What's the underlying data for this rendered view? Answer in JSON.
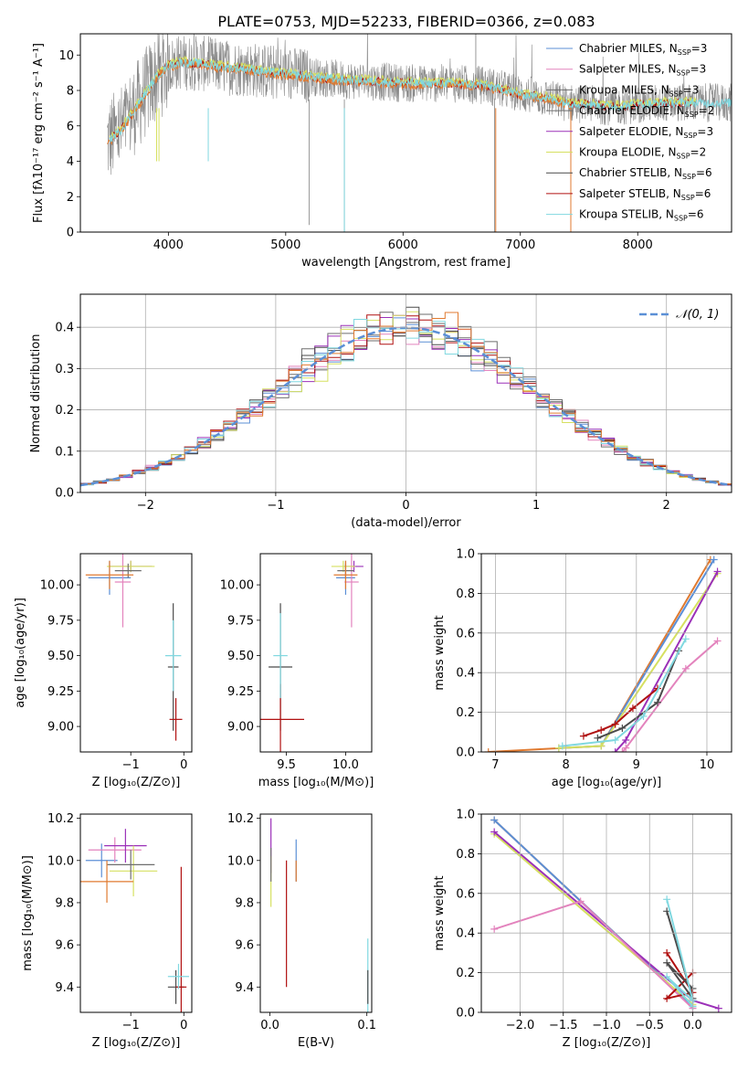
{
  "figure_title": "PLATE=0753, MJD=52233, FIBERID=0366, z=0.083",
  "colors": {
    "Chabrier MILES": "#5b8fd6",
    "Salpeter MILES": "#e383bd",
    "Kroupa MILES": "#6e6e6e",
    "Chabrier ELODIE": "#6e6e6e",
    "Salpeter ELODIE": "#9b30b8",
    "Kroupa ELODIE": "#d6e060",
    "Chabrier STELIB": "#4a4a4a",
    "Salpeter STELIB": "#b01010",
    "Kroupa STELIB": "#80d8e0",
    "extra": "#e07a30",
    "normal": "#5b8fd6"
  },
  "chart_data": [
    {
      "id": "spectrum",
      "type": "line",
      "xlabel": "wavelength [Angstrom, rest frame]",
      "ylabel": "Flux [fλ10⁻¹⁷ erg cm⁻² s⁻¹ A⁻¹]",
      "xlim": [
        3250,
        8800
      ],
      "ylim": [
        0,
        11.2
      ],
      "xticks": [
        4000,
        5000,
        6000,
        7000,
        8000
      ],
      "yticks": [
        0,
        2,
        4,
        6,
        8,
        10
      ],
      "legend_position": "top-right",
      "legend": [
        {
          "name": "Chabrier MILES",
          "sub": "SSP",
          "n": "3"
        },
        {
          "name": "Salpeter MILES",
          "sub": "SSP",
          "n": "3"
        },
        {
          "name": "Kroupa MILES",
          "sub": "SSP",
          "n": "3"
        },
        {
          "name": "Chabrier ELODIE",
          "sub": "SSP",
          "n": "2"
        },
        {
          "name": "Salpeter ELODIE",
          "sub": "SSP",
          "n": "3"
        },
        {
          "name": "Kroupa ELODIE",
          "sub": "SSP",
          "n": "2"
        },
        {
          "name": "Chabrier STELIB",
          "sub": "SSP",
          "n": "6"
        },
        {
          "name": "Salpeter STELIB",
          "sub": "SSP",
          "n": "6"
        },
        {
          "name": "Kroupa STELIB",
          "sub": "SSP",
          "n": "6"
        }
      ],
      "data_envelope": {
        "x": [
          3500,
          3600,
          3700,
          3800,
          3900,
          4000,
          4100,
          4300,
          4500,
          4700,
          4900,
          5200,
          5500,
          5800,
          6100,
          6400,
          6700,
          7000,
          7200,
          7400,
          7600,
          7800,
          8000,
          8200,
          8400,
          8600,
          8800
        ],
        "y": [
          5.2,
          5.8,
          6.8,
          7.8,
          8.8,
          9.4,
          9.6,
          9.5,
          9.3,
          9.2,
          9.0,
          8.8,
          8.6,
          8.5,
          8.4,
          8.4,
          8.3,
          7.8,
          7.6,
          7.3,
          7.2,
          7.1,
          7.2,
          7.3,
          7.3,
          7.3,
          7.3
        ]
      }
    },
    {
      "id": "residuals",
      "type": "line",
      "xlabel": "(data-model)/error",
      "ylabel": "Normed distribution",
      "xlim": [
        -2.5,
        2.5
      ],
      "ylim": [
        0,
        0.48
      ],
      "xticks": [
        -2,
        -1,
        0,
        1,
        2
      ],
      "yticks": [
        0.0,
        0.1,
        0.2,
        0.3,
        0.4
      ],
      "xtick_labels": [
        "−2",
        "−1",
        "0",
        "1",
        "2"
      ],
      "ytick_labels": [
        "0.0",
        "0.1",
        "0.2",
        "0.3",
        "0.4"
      ],
      "legend": [
        {
          "name": "𝒩(0, 1)"
        }
      ],
      "legend_position": "top-right",
      "grid": true
    },
    {
      "id": "age_vs_Z",
      "type": "scatter",
      "xlabel": "Z [log₁₀(Z/Z⊙)]",
      "ylabel": "age  [log₁₀(age/yr)]",
      "xlim": [
        -1.95,
        0.15
      ],
      "ylim": [
        8.82,
        10.22
      ],
      "xticks": [
        -1,
        0
      ],
      "yticks": [
        9.0,
        9.25,
        9.5,
        9.75,
        10.0
      ],
      "xtick_labels": [
        "−1",
        "0"
      ],
      "ytick_labels": [
        "9.00",
        "9.25",
        "9.50",
        "9.75",
        "10.00"
      ],
      "points": [
        {
          "color": "#5b8fd6",
          "x": -1.4,
          "xerr": 0.4,
          "y": 10.05,
          "yerr": 0.12
        },
        {
          "color": "#e383bd",
          "x": -1.15,
          "xerr": 0.15,
          "y": 10.02,
          "yerr": 0.32
        },
        {
          "color": "#9b30b8",
          "x": -1.0,
          "xerr": 0.4,
          "y": 10.13,
          "yerr": 0.04
        },
        {
          "color": "#d6e060",
          "x": -1.0,
          "xerr": 0.45,
          "y": 10.13,
          "yerr": 0.04
        },
        {
          "color": "#6e6e6e",
          "x": -1.05,
          "xerr": 0.25,
          "y": 10.1,
          "yerr": 0.05
        },
        {
          "color": "#e07a30",
          "x": -1.4,
          "xerr": 0.45,
          "y": 10.07,
          "yerr": 0.1
        },
        {
          "color": "#4a4a4a",
          "x": -0.2,
          "xerr": 0.1,
          "y": 9.42,
          "yerr": 0.45
        },
        {
          "color": "#b01010",
          "x": -0.15,
          "xerr": 0.12,
          "y": 9.05,
          "yerr": 0.15
        },
        {
          "color": "#80d8e0",
          "x": -0.2,
          "xerr": 0.15,
          "y": 9.5,
          "yerr": 0.25
        }
      ]
    },
    {
      "id": "age_vs_mass",
      "type": "scatter",
      "xlabel": "mass [log₁₀(M/M⊙)]",
      "ylabel": "",
      "xlim": [
        9.28,
        10.22
      ],
      "ylim": [
        8.82,
        10.22
      ],
      "xticks": [
        9.5,
        10.0
      ],
      "yticks": [
        9.0,
        9.25,
        9.5,
        9.75,
        10.0
      ],
      "xtick_labels": [
        "9.5",
        "10.0"
      ],
      "ytick_labels": [
        "9.00",
        "9.25",
        "9.50",
        "9.75",
        "10.00"
      ],
      "points": [
        {
          "color": "#5b8fd6",
          "x": 10.0,
          "xerr": 0.08,
          "y": 10.05,
          "yerr": 0.12
        },
        {
          "color": "#e383bd",
          "x": 10.05,
          "xerr": 0.06,
          "y": 10.02,
          "yerr": 0.32
        },
        {
          "color": "#9b30b8",
          "x": 10.07,
          "xerr": 0.08,
          "y": 10.13,
          "yerr": 0.04
        },
        {
          "color": "#d6e060",
          "x": 9.98,
          "xerr": 0.1,
          "y": 10.13,
          "yerr": 0.04
        },
        {
          "color": "#6e6e6e",
          "x": 10.0,
          "xerr": 0.07,
          "y": 10.1,
          "yerr": 0.05
        },
        {
          "color": "#e07a30",
          "x": 10.0,
          "xerr": 0.1,
          "y": 10.07,
          "yerr": 0.1
        },
        {
          "color": "#4a4a4a",
          "x": 9.45,
          "xerr": 0.1,
          "y": 9.42,
          "yerr": 0.45
        },
        {
          "color": "#b01010",
          "x": 9.45,
          "xerr": 0.2,
          "y": 9.05,
          "yerr": 0.25
        },
        {
          "color": "#80d8e0",
          "x": 9.45,
          "xerr": 0.06,
          "y": 9.5,
          "yerr": 0.3
        }
      ]
    },
    {
      "id": "weight_vs_age",
      "type": "line",
      "xlabel": "age  [log₁₀(age/yr)]",
      "ylabel": "mass weight",
      "xlim": [
        6.8,
        10.35
      ],
      "ylim": [
        0,
        1.0
      ],
      "xticks": [
        7,
        8,
        9,
        10
      ],
      "yticks": [
        0.0,
        0.2,
        0.4,
        0.6,
        0.8,
        1.0
      ],
      "xtick_labels": [
        "7",
        "8",
        "9",
        "10"
      ],
      "ytick_labels": [
        "0.0",
        "0.2",
        "0.4",
        "0.6",
        "0.8",
        "1.0"
      ],
      "grid": true,
      "series": [
        {
          "color": "#e07a30",
          "x": [
            6.9,
            8.5,
            10.05
          ],
          "y": [
            0.0,
            0.03,
            0.97
          ]
        },
        {
          "color": "#5b8fd6",
          "x": [
            7.9,
            8.5,
            10.1
          ],
          "y": [
            0.02,
            0.03,
            0.97
          ]
        },
        {
          "color": "#d6e060",
          "x": [
            7.9,
            8.5,
            10.15
          ],
          "y": [
            0.02,
            0.03,
            0.9
          ]
        },
        {
          "color": "#9b30b8",
          "x": [
            8.7,
            8.85,
            10.15
          ],
          "y": [
            0.0,
            0.06,
            0.91
          ]
        },
        {
          "color": "#e383bd",
          "x": [
            8.8,
            8.85,
            9.7,
            10.15
          ],
          "y": [
            0.0,
            0.02,
            0.42,
            0.56
          ]
        },
        {
          "color": "#b01010",
          "x": [
            8.25,
            8.5,
            8.7,
            8.95,
            9.3
          ],
          "y": [
            0.08,
            0.11,
            0.14,
            0.22,
            0.32
          ]
        },
        {
          "color": "#4a4a4a",
          "x": [
            8.45,
            8.8,
            9.3,
            9.6
          ],
          "y": [
            0.07,
            0.12,
            0.25,
            0.51
          ]
        },
        {
          "color": "#80d8e0",
          "x": [
            7.95,
            8.7,
            9.1,
            9.7
          ],
          "y": [
            0.03,
            0.06,
            0.18,
            0.57
          ]
        }
      ]
    },
    {
      "id": "mass_vs_Z",
      "type": "scatter",
      "xlabel": "Z [log₁₀(Z/Z⊙)]",
      "ylabel": "mass [log₁₀(M/M⊙)]",
      "xlim": [
        -1.95,
        0.15
      ],
      "ylim": [
        9.28,
        10.22
      ],
      "xticks": [
        -1,
        0
      ],
      "yticks": [
        9.4,
        9.6,
        9.8,
        10.0,
        10.2
      ],
      "xtick_labels": [
        "−1",
        "0"
      ],
      "ytick_labels": [
        "9.4",
        "9.6",
        "9.8",
        "10.0",
        "10.2"
      ],
      "points": [
        {
          "color": "#5b8fd6",
          "x": -1.55,
          "xerr": 0.3,
          "y": 10.0,
          "yerr": 0.08
        },
        {
          "color": "#e383bd",
          "x": -1.3,
          "xerr": 0.5,
          "y": 10.05,
          "yerr": 0.06
        },
        {
          "color": "#9b30b8",
          "x": -1.1,
          "xerr": 0.4,
          "y": 10.07,
          "yerr": 0.08
        },
        {
          "color": "#d6e060",
          "x": -0.95,
          "xerr": 0.45,
          "y": 9.95,
          "yerr": 0.12
        },
        {
          "color": "#6e6e6e",
          "x": -1.0,
          "xerr": 0.45,
          "y": 9.98,
          "yerr": 0.07
        },
        {
          "color": "#e07a30",
          "x": -1.45,
          "xerr": 0.5,
          "y": 9.9,
          "yerr": 0.1
        },
        {
          "color": "#4a4a4a",
          "x": -0.15,
          "xerr": 0.15,
          "y": 9.4,
          "yerr": 0.08
        },
        {
          "color": "#b01010",
          "x": -0.05,
          "xerr": 0.1,
          "y": 9.4,
          "yerr": 0.57
        },
        {
          "color": "#80d8e0",
          "x": -0.1,
          "xerr": 0.2,
          "y": 9.45,
          "yerr": 0.06
        }
      ]
    },
    {
      "id": "mass_vs_ebv",
      "type": "scatter",
      "xlabel": "E(B-V)",
      "ylabel": "",
      "xlim": [
        -0.01,
        0.105
      ],
      "ylim": [
        9.28,
        10.22
      ],
      "xticks": [
        0.0,
        0.1
      ],
      "yticks": [
        9.4,
        9.6,
        9.8,
        10.0,
        10.2
      ],
      "xtick_labels": [
        "0.0",
        "0.1"
      ],
      "ytick_labels": [
        "9.4",
        "9.6",
        "9.8",
        "10.0",
        "10.2"
      ],
      "points": [
        {
          "color": "#9b30b8",
          "x": 0.001,
          "xerr": 0,
          "y": 10.07,
          "yerr": 0.13
        },
        {
          "color": "#d6e060",
          "x": 0.001,
          "xerr": 0,
          "y": 9.9,
          "yerr": 0.12
        },
        {
          "color": "#6e6e6e",
          "x": 0.001,
          "xerr": 0,
          "y": 9.98,
          "yerr": 0.08
        },
        {
          "color": "#b01010",
          "x": 0.017,
          "xerr": 0,
          "y": 9.7,
          "yerr": 0.3
        },
        {
          "color": "#5b8fd6",
          "x": 0.027,
          "xerr": 0,
          "y": 10.0,
          "yerr": 0.1
        },
        {
          "color": "#e07a30",
          "x": 0.027,
          "xerr": 0,
          "y": 9.95,
          "yerr": 0.05
        },
        {
          "color": "#80d8e0",
          "x": 0.101,
          "xerr": 0,
          "y": 9.45,
          "yerr": 0.18
        },
        {
          "color": "#4a4a4a",
          "x": 0.101,
          "xerr": 0,
          "y": 9.4,
          "yerr": 0.08
        }
      ]
    },
    {
      "id": "weight_vs_Z",
      "type": "line",
      "xlabel": "Z [log₁₀(Z/Z⊙)]",
      "ylabel": "mass weight",
      "xlim": [
        -2.45,
        0.45
      ],
      "ylim": [
        0,
        1.0
      ],
      "xticks": [
        -2.0,
        -1.5,
        -1.0,
        -0.5,
        0.0
      ],
      "yticks": [
        0.0,
        0.2,
        0.4,
        0.6,
        0.8,
        1.0
      ],
      "xtick_labels": [
        "−2.0",
        "−1.5",
        "−1.0",
        "−0.5",
        "0.0"
      ],
      "ytick_labels": [
        "0.0",
        "0.2",
        "0.4",
        "0.6",
        "0.8",
        "1.0"
      ],
      "grid": true,
      "series": [
        {
          "color": "#e07a30",
          "x": [
            -2.3,
            0.0
          ],
          "y": [
            0.97,
            0.03
          ]
        },
        {
          "color": "#5b8fd6",
          "x": [
            -2.3,
            0.0
          ],
          "y": [
            0.97,
            0.03
          ]
        },
        {
          "color": "#d6e060",
          "x": [
            -2.3,
            0.0
          ],
          "y": [
            0.9,
            0.04
          ]
        },
        {
          "color": "#9b30b8",
          "x": [
            -2.3,
            0.0,
            0.3
          ],
          "y": [
            0.91,
            0.06,
            0.02
          ]
        },
        {
          "color": "#e383bd",
          "x": [
            -2.3,
            -1.3,
            0.0
          ],
          "y": [
            0.42,
            0.56,
            0.02
          ]
        },
        {
          "color": "#b01010",
          "x": [
            -0.3,
            0.0,
            -0.3,
            0.0
          ],
          "y": [
            0.3,
            0.1,
            0.07,
            0.2
          ]
        },
        {
          "color": "#4a4a4a",
          "x": [
            -0.3,
            0.0,
            -0.3,
            0.0
          ],
          "y": [
            0.51,
            0.07,
            0.25,
            0.12
          ]
        },
        {
          "color": "#80d8e0",
          "x": [
            -0.3,
            0.0,
            -0.3,
            0.0
          ],
          "y": [
            0.57,
            0.06,
            0.18,
            0.03
          ]
        }
      ]
    }
  ]
}
